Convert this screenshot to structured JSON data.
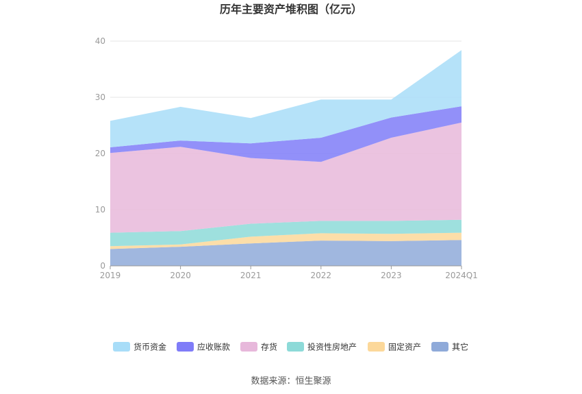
{
  "chart_data": {
    "type": "area",
    "stacked": true,
    "title": "历年主要资产堆积图（亿元）",
    "categories": [
      "2019",
      "2020",
      "2021",
      "2022",
      "2023",
      "2024Q1"
    ],
    "ylim": [
      0,
      40
    ],
    "yticks": [
      0,
      10,
      20,
      30,
      40
    ],
    "grid": true,
    "legend_position": "bottom",
    "series": [
      {
        "name": "其它",
        "color": "#8FAAD9",
        "values": [
          3.0,
          3.4,
          4.0,
          4.5,
          4.4,
          4.6
        ]
      },
      {
        "name": "固定资产",
        "color": "#FCD89A",
        "values": [
          0.5,
          0.4,
          1.2,
          1.3,
          1.3,
          1.3
        ]
      },
      {
        "name": "投资性房地产",
        "color": "#8DDAD8",
        "values": [
          2.4,
          2.4,
          2.3,
          2.2,
          2.3,
          2.3
        ]
      },
      {
        "name": "存货",
        "color": "#E7B8DB",
        "values": [
          14.2,
          15.0,
          11.7,
          10.5,
          14.8,
          17.3
        ]
      },
      {
        "name": "应收账款",
        "color": "#7F7CF8",
        "values": [
          1.0,
          1.1,
          2.6,
          4.3,
          3.6,
          2.9
        ]
      },
      {
        "name": "货币资金",
        "color": "#A8DDF8",
        "values": [
          4.7,
          6.0,
          4.5,
          6.8,
          3.2,
          10.0
        ]
      }
    ],
    "legend_order": [
      "货币资金",
      "应收账款",
      "存货",
      "投资性房地产",
      "固定资产",
      "其它"
    ]
  },
  "footer": {
    "source": "数据来源：恒生聚源"
  }
}
